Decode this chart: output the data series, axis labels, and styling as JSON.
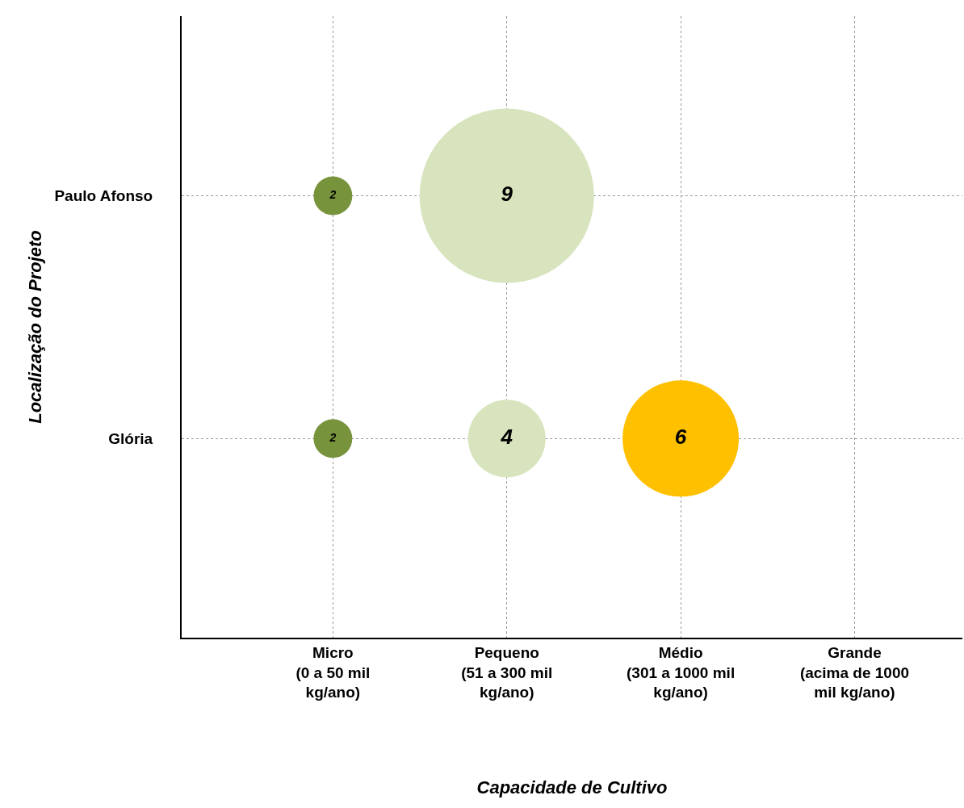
{
  "chart_data": {
    "type": "other",
    "xlabel": "Capacidade de Cultivo",
    "ylabel": "Localização do Projeto",
    "categories": [
      "Micro\n(0 a 50 mil\nkg/ano)",
      "Pequeno\n(51 a 300 mil\nkg/ano)",
      "Médio\n(301 a 1000 mil\nkg/ano)",
      "Grande\n(acima de 1000\nmil kg/ano)"
    ],
    "y_categories": [
      "Paulo Afonso",
      "Glória"
    ],
    "series": [
      {
        "values": [
          2,
          9,
          null,
          null
        ],
        "colors": [
          "#77933c",
          "#d7e4bd",
          null,
          null
        ]
      },
      {
        "values": [
          2,
          4,
          6,
          null
        ],
        "colors": [
          "#77933c",
          "#d7e4bd",
          "#ffc000",
          null
        ]
      }
    ],
    "data_labels": true,
    "legend": false
  }
}
